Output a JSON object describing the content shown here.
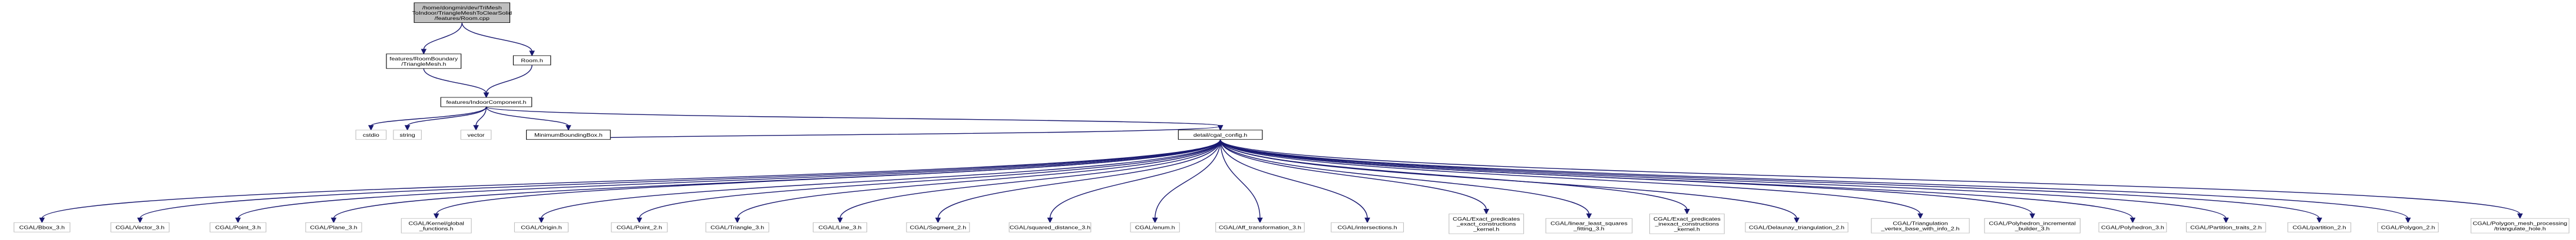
{
  "diagram": {
    "title": "",
    "root": "features_room_cpp",
    "nodes": [
      {
        "id": "features_room_cpp",
        "lines": [
          "/home/dongmin/dev/TriMesh",
          "ToIndoor/TriangleMeshToClearSolid",
          "/features/Room.cpp"
        ],
        "kind": "root"
      },
      {
        "id": "room_boundary_trianglemesh_h",
        "lines": [
          "features/RoomBoundary",
          "/TriangleMesh.h"
        ],
        "kind": "file"
      },
      {
        "id": "room_h",
        "lines": [
          "Room.h"
        ],
        "kind": "file"
      },
      {
        "id": "indoor_component_h",
        "lines": [
          "features/IndoorComponent.h"
        ],
        "kind": "file"
      },
      {
        "id": "cstdio",
        "lines": [
          "cstdio"
        ],
        "kind": "system"
      },
      {
        "id": "string",
        "lines": [
          "string"
        ],
        "kind": "system"
      },
      {
        "id": "vector",
        "lines": [
          "vector"
        ],
        "kind": "system"
      },
      {
        "id": "minimum_bounding_box_h",
        "lines": [
          "MinimumBoundingBox.h"
        ],
        "kind": "file"
      },
      {
        "id": "detail_cgal_config_h",
        "lines": [
          "detail/cgal_config.h"
        ],
        "kind": "file"
      },
      {
        "id": "cgal_bbox_3_h",
        "lines": [
          "CGAL/Bbox_3.h"
        ],
        "kind": "system"
      },
      {
        "id": "cgal_vector_3_h",
        "lines": [
          "CGAL/Vector_3.h"
        ],
        "kind": "system"
      },
      {
        "id": "cgal_point_3_h",
        "lines": [
          "CGAL/Point_3.h"
        ],
        "kind": "system"
      },
      {
        "id": "cgal_plane_3_h",
        "lines": [
          "CGAL/Plane_3.h"
        ],
        "kind": "system"
      },
      {
        "id": "cgal_kernel_global_functions_h",
        "lines": [
          "CGAL/Kernel/global",
          "_functions.h"
        ],
        "kind": "system"
      },
      {
        "id": "cgal_origin_h",
        "lines": [
          "CGAL/Origin.h"
        ],
        "kind": "system"
      },
      {
        "id": "cgal_point_2_h",
        "lines": [
          "CGAL/Point_2.h"
        ],
        "kind": "system"
      },
      {
        "id": "cgal_triangle_3_h",
        "lines": [
          "CGAL/Triangle_3.h"
        ],
        "kind": "system"
      },
      {
        "id": "cgal_line_3_h",
        "lines": [
          "CGAL/Line_3.h"
        ],
        "kind": "system"
      },
      {
        "id": "cgal_segment_2_h",
        "lines": [
          "CGAL/Segment_2.h"
        ],
        "kind": "system"
      },
      {
        "id": "cgal_squared_distance_3_h",
        "lines": [
          "CGAL/squared_distance_3.h"
        ],
        "kind": "system"
      },
      {
        "id": "cgal_enum_h",
        "lines": [
          "CGAL/enum.h"
        ],
        "kind": "system"
      },
      {
        "id": "cgal_aff_transformation_3_h",
        "lines": [
          "CGAL/Aff_transformation_3.h"
        ],
        "kind": "system"
      },
      {
        "id": "cgal_intersections_h",
        "lines": [
          "CGAL/intersections.h"
        ],
        "kind": "system"
      },
      {
        "id": "cgal_epec_h",
        "lines": [
          "CGAL/Exact_predicates",
          "_exact_constructions",
          "_kernel.h"
        ],
        "kind": "system"
      },
      {
        "id": "cgal_linear_least_squares_fitting_3_h",
        "lines": [
          "CGAL/linear_least_squares",
          "_fitting_3.h"
        ],
        "kind": "system"
      },
      {
        "id": "cgal_epic_h",
        "lines": [
          "CGAL/Exact_predicates",
          "_inexact_constructions",
          "_kernel.h"
        ],
        "kind": "system"
      },
      {
        "id": "cgal_delaunay_triangulation_2_h",
        "lines": [
          "CGAL/Delaunay_triangulation_2.h"
        ],
        "kind": "system"
      },
      {
        "id": "cgal_triangulation_vertex_base_with_info_2_h",
        "lines": [
          "CGAL/Triangulation",
          "_vertex_base_with_info_2.h"
        ],
        "kind": "system"
      },
      {
        "id": "cgal_polyhedron_incremental_builder_3_h",
        "lines": [
          "CGAL/Polyhedron_incremental",
          "_builder_3.h"
        ],
        "kind": "system"
      },
      {
        "id": "cgal_polyhedron_3_h",
        "lines": [
          "CGAL/Polyhedron_3.h"
        ],
        "kind": "system"
      },
      {
        "id": "cgal_partition_traits_2_h",
        "lines": [
          "CGAL/Partition_traits_2.h"
        ],
        "kind": "system"
      },
      {
        "id": "cgal_partition_2_h",
        "lines": [
          "CGAL/partition_2.h"
        ],
        "kind": "system"
      },
      {
        "id": "cgal_polygon_2_h",
        "lines": [
          "CGAL/Polygon_2.h"
        ],
        "kind": "system"
      },
      {
        "id": "cgal_pmp_triangulate_hole_h",
        "lines": [
          "CGAL/Polygon_mesh_processing",
          "/triangulate_hole.h"
        ],
        "kind": "system"
      }
    ],
    "edges": [
      [
        "features_room_cpp",
        "room_boundary_trianglemesh_h"
      ],
      [
        "features_room_cpp",
        "room_h"
      ],
      [
        "room_boundary_trianglemesh_h",
        "indoor_component_h"
      ],
      [
        "room_h",
        "indoor_component_h"
      ],
      [
        "indoor_component_h",
        "cstdio"
      ],
      [
        "indoor_component_h",
        "string"
      ],
      [
        "indoor_component_h",
        "vector"
      ],
      [
        "indoor_component_h",
        "minimum_bounding_box_h"
      ],
      [
        "indoor_component_h",
        "detail_cgal_config_h"
      ],
      [
        "minimum_bounding_box_h",
        "detail_cgal_config_h"
      ],
      [
        "detail_cgal_config_h",
        "cgal_bbox_3_h"
      ],
      [
        "detail_cgal_config_h",
        "cgal_vector_3_h"
      ],
      [
        "detail_cgal_config_h",
        "cgal_point_3_h"
      ],
      [
        "detail_cgal_config_h",
        "cgal_plane_3_h"
      ],
      [
        "detail_cgal_config_h",
        "cgal_kernel_global_functions_h"
      ],
      [
        "detail_cgal_config_h",
        "cgal_origin_h"
      ],
      [
        "detail_cgal_config_h",
        "cgal_point_2_h"
      ],
      [
        "detail_cgal_config_h",
        "cgal_triangle_3_h"
      ],
      [
        "detail_cgal_config_h",
        "cgal_line_3_h"
      ],
      [
        "detail_cgal_config_h",
        "cgal_segment_2_h"
      ],
      [
        "detail_cgal_config_h",
        "cgal_squared_distance_3_h"
      ],
      [
        "detail_cgal_config_h",
        "cgal_enum_h"
      ],
      [
        "detail_cgal_config_h",
        "cgal_aff_transformation_3_h"
      ],
      [
        "detail_cgal_config_h",
        "cgal_intersections_h"
      ],
      [
        "detail_cgal_config_h",
        "cgal_epec_h"
      ],
      [
        "detail_cgal_config_h",
        "cgal_linear_least_squares_fitting_3_h"
      ],
      [
        "detail_cgal_config_h",
        "cgal_epic_h"
      ],
      [
        "detail_cgal_config_h",
        "cgal_delaunay_triangulation_2_h"
      ],
      [
        "detail_cgal_config_h",
        "cgal_triangulation_vertex_base_with_info_2_h"
      ],
      [
        "detail_cgal_config_h",
        "cgal_polyhedron_incremental_builder_3_h"
      ],
      [
        "detail_cgal_config_h",
        "cgal_polyhedron_3_h"
      ],
      [
        "detail_cgal_config_h",
        "cgal_partition_traits_2_h"
      ],
      [
        "detail_cgal_config_h",
        "cgal_partition_2_h"
      ],
      [
        "detail_cgal_config_h",
        "cgal_polygon_2_h"
      ],
      [
        "detail_cgal_config_h",
        "cgal_pmp_triangulate_hole_h"
      ]
    ],
    "colors": {
      "edge": "#191970",
      "root_fill": "#bfbfbf",
      "file_border": "#000000",
      "system_border": "#bfbfbf",
      "background": "#ffffff"
    }
  }
}
